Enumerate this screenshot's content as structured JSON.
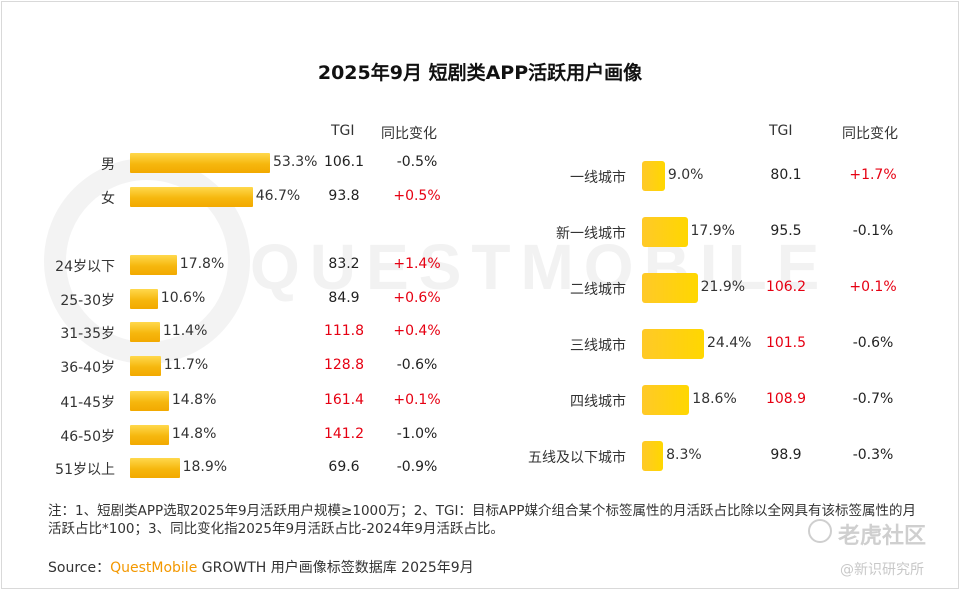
{
  "title": "2025年9月 短剧类APP活跃用户画像",
  "headers": {
    "tgi": "TGI",
    "change": "同比变化"
  },
  "chart_data": [
    {
      "type": "bar",
      "orientation": "horizontal",
      "series_unit": "%",
      "categories": [
        "男",
        "女",
        "24岁以下",
        "25-30岁",
        "31-35岁",
        "36-40岁",
        "41-45岁",
        "46-50岁",
        "51岁以上"
      ],
      "values": [
        53.3,
        46.7,
        17.8,
        10.6,
        11.4,
        11.7,
        14.8,
        14.8,
        18.9
      ],
      "value_labels": [
        "53.3%",
        "46.7%",
        "17.8%",
        "10.6%",
        "11.4%",
        "11.7%",
        "14.8%",
        "14.8%",
        "18.9%"
      ],
      "tgi": [
        "106.1",
        "93.8",
        "83.2",
        "84.9",
        "111.8",
        "128.8",
        "161.4",
        "141.2",
        "69.6"
      ],
      "tgi_highlight": [
        false,
        false,
        false,
        false,
        true,
        true,
        true,
        true,
        false
      ],
      "change": [
        "-0.5%",
        "+0.5%",
        "+1.4%",
        "+0.6%",
        "+0.4%",
        "-0.6%",
        "+0.1%",
        "-1.0%",
        "-0.9%"
      ]
    },
    {
      "type": "bar",
      "orientation": "horizontal",
      "series_unit": "%",
      "categories": [
        "一线城市",
        "新一线城市",
        "二线城市",
        "三线城市",
        "四线城市",
        "五线及以下城市"
      ],
      "values": [
        9.0,
        17.9,
        21.9,
        24.4,
        18.6,
        8.3
      ],
      "value_labels": [
        "9.0%",
        "17.9%",
        "21.9%",
        "24.4%",
        "18.6%",
        "8.3%"
      ],
      "tgi": [
        "80.1",
        "95.5",
        "106.2",
        "101.5",
        "108.9",
        "98.9"
      ],
      "tgi_highlight": [
        false,
        false,
        true,
        true,
        true,
        false
      ],
      "change": [
        "+1.7%",
        "-0.1%",
        "+0.1%",
        "-0.6%",
        "-0.7%",
        "-0.3%"
      ]
    }
  ],
  "colors": {
    "bar": "#f6b70e",
    "positive": "#e60012",
    "text": "#333333"
  },
  "note": "注：1、短剧类APP选取2025年9月活跃用户规模≥1000万；2、TGI：目标APP媒介组合某个标签属性的月活跃占比除以全网具有该标签属性的月活跃占比*100；3、同比变化指2025年9月活跃占比-2024年9月活跃占比。",
  "source": {
    "prefix": "Source：",
    "brand": "QuestMobile",
    "rest": "GROWTH 用户画像标签数据库 2025年9月"
  },
  "watermark": {
    "text": "QUESTMOBILE",
    "logo_text": "老虎社区",
    "handle": "@新识研究所"
  }
}
